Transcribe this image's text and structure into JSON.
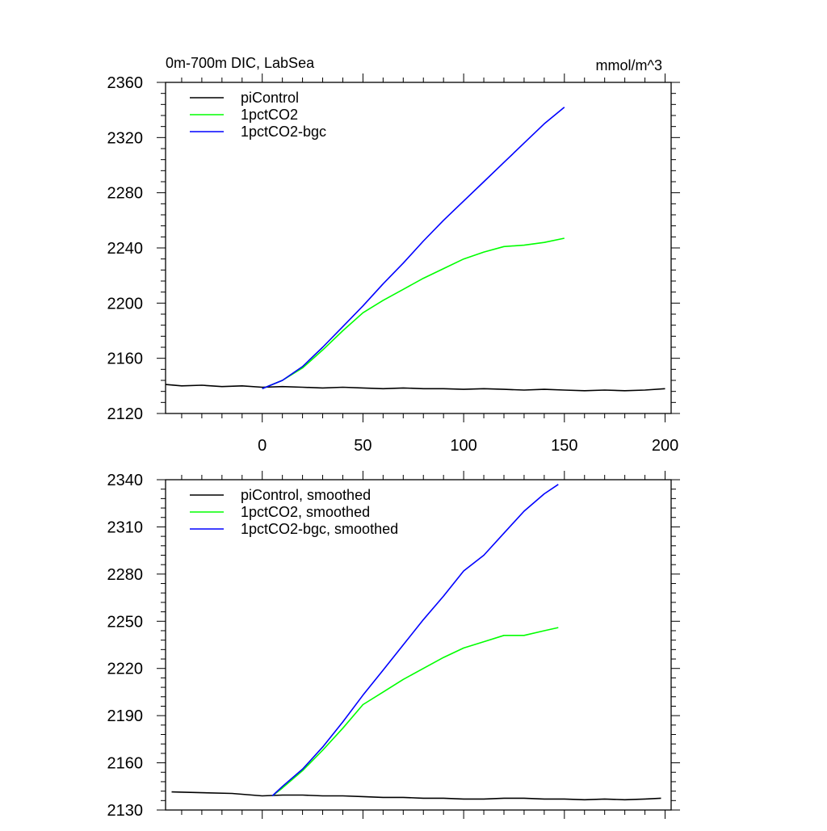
{
  "chart_data": [
    {
      "type": "line",
      "title": "0m-700m DIC, LabSea",
      "units": "mmol/m^3",
      "xlim": [
        -48,
        203
      ],
      "ylim": [
        2120,
        2360
      ],
      "xticks": [
        0,
        50,
        100,
        150,
        200
      ],
      "xtick_labels": [
        "0",
        "50",
        "100",
        "150",
        "200"
      ],
      "yticks": [
        2120,
        2160,
        2200,
        2240,
        2280,
        2320,
        2360
      ],
      "ytick_labels": [
        "2120",
        "2160",
        "2200",
        "2240",
        "2280",
        "2320",
        "2360"
      ],
      "legend": {
        "placement": "top-left"
      },
      "grid": false,
      "series": [
        {
          "name": "piControl",
          "color": "#000000",
          "x": [
            -48,
            -40,
            -30,
            -20,
            -10,
            0,
            10,
            20,
            30,
            40,
            50,
            60,
            70,
            80,
            90,
            100,
            110,
            120,
            130,
            140,
            150,
            160,
            170,
            180,
            190,
            200
          ],
          "values": [
            2141,
            2140,
            2140.5,
            2139.5,
            2140,
            2139,
            2139.5,
            2139,
            2138.5,
            2139,
            2138.5,
            2138,
            2138.5,
            2138,
            2138,
            2137.5,
            2138,
            2137.5,
            2137,
            2137.5,
            2137,
            2136.5,
            2137,
            2136.5,
            2137,
            2138
          ]
        },
        {
          "name": "1pctCO2",
          "color": "#00ff00",
          "x": [
            0,
            10,
            20,
            30,
            40,
            50,
            60,
            70,
            80,
            90,
            100,
            110,
            120,
            130,
            140,
            150
          ],
          "values": [
            2138,
            2144,
            2153,
            2166,
            2180,
            2193,
            2202,
            2210,
            2218,
            2225,
            2232,
            2237,
            2241,
            2242,
            2244,
            2247
          ]
        },
        {
          "name": "1pctCO2-bgc",
          "color": "#0000ff",
          "x": [
            0,
            10,
            20,
            30,
            40,
            50,
            60,
            70,
            80,
            90,
            100,
            110,
            120,
            130,
            140,
            150
          ],
          "values": [
            2138,
            2144,
            2154,
            2168,
            2183,
            2198,
            2214,
            2229,
            2245,
            2260,
            2274,
            2288,
            2302,
            2316,
            2330,
            2342
          ]
        }
      ]
    },
    {
      "type": "line",
      "xlim": [
        -48,
        203
      ],
      "ylim": [
        2130,
        2340
      ],
      "xticks": [
        0,
        50,
        100,
        150,
        200
      ],
      "xtick_labels": [],
      "yticks": [
        2130,
        2160,
        2190,
        2220,
        2250,
        2280,
        2310,
        2340
      ],
      "ytick_labels": [
        "2130",
        "2160",
        "2190",
        "2220",
        "2250",
        "2280",
        "2310",
        "2340"
      ],
      "legend": {
        "placement": "top-left"
      },
      "grid": false,
      "series": [
        {
          "name": "piControl, smoothed",
          "color": "#000000",
          "x": [
            -45,
            -30,
            -15,
            0,
            10,
            20,
            30,
            40,
            50,
            60,
            70,
            80,
            90,
            100,
            110,
            120,
            130,
            140,
            150,
            160,
            170,
            180,
            190,
            198
          ],
          "values": [
            2141.5,
            2141,
            2140.5,
            2139,
            2139.5,
            2139.5,
            2139,
            2139,
            2138.5,
            2138,
            2138,
            2137.5,
            2137.5,
            2137,
            2137,
            2137.5,
            2137.5,
            2137,
            2137,
            2136.5,
            2137,
            2136.5,
            2137,
            2137.5
          ]
        },
        {
          "name": "1pctCO2, smoothed",
          "color": "#00ff00",
          "x": [
            5,
            10,
            20,
            30,
            40,
            50,
            60,
            70,
            80,
            90,
            100,
            110,
            120,
            130,
            140,
            147
          ],
          "values": [
            2139,
            2144,
            2155,
            2168,
            2182,
            2197,
            2205,
            2213,
            2220,
            2227,
            2233,
            2237,
            2241,
            2241,
            2244,
            2246
          ]
        },
        {
          "name": "1pctCO2-bgc, smoothed",
          "color": "#0000ff",
          "x": [
            5,
            10,
            20,
            30,
            40,
            50,
            60,
            70,
            80,
            90,
            100,
            110,
            120,
            130,
            140,
            147
          ],
          "values": [
            2139,
            2145,
            2156,
            2170,
            2186,
            2203,
            2219,
            2235,
            2251,
            2266,
            2282,
            2292,
            2306,
            2320,
            2331,
            2337
          ]
        }
      ]
    }
  ]
}
